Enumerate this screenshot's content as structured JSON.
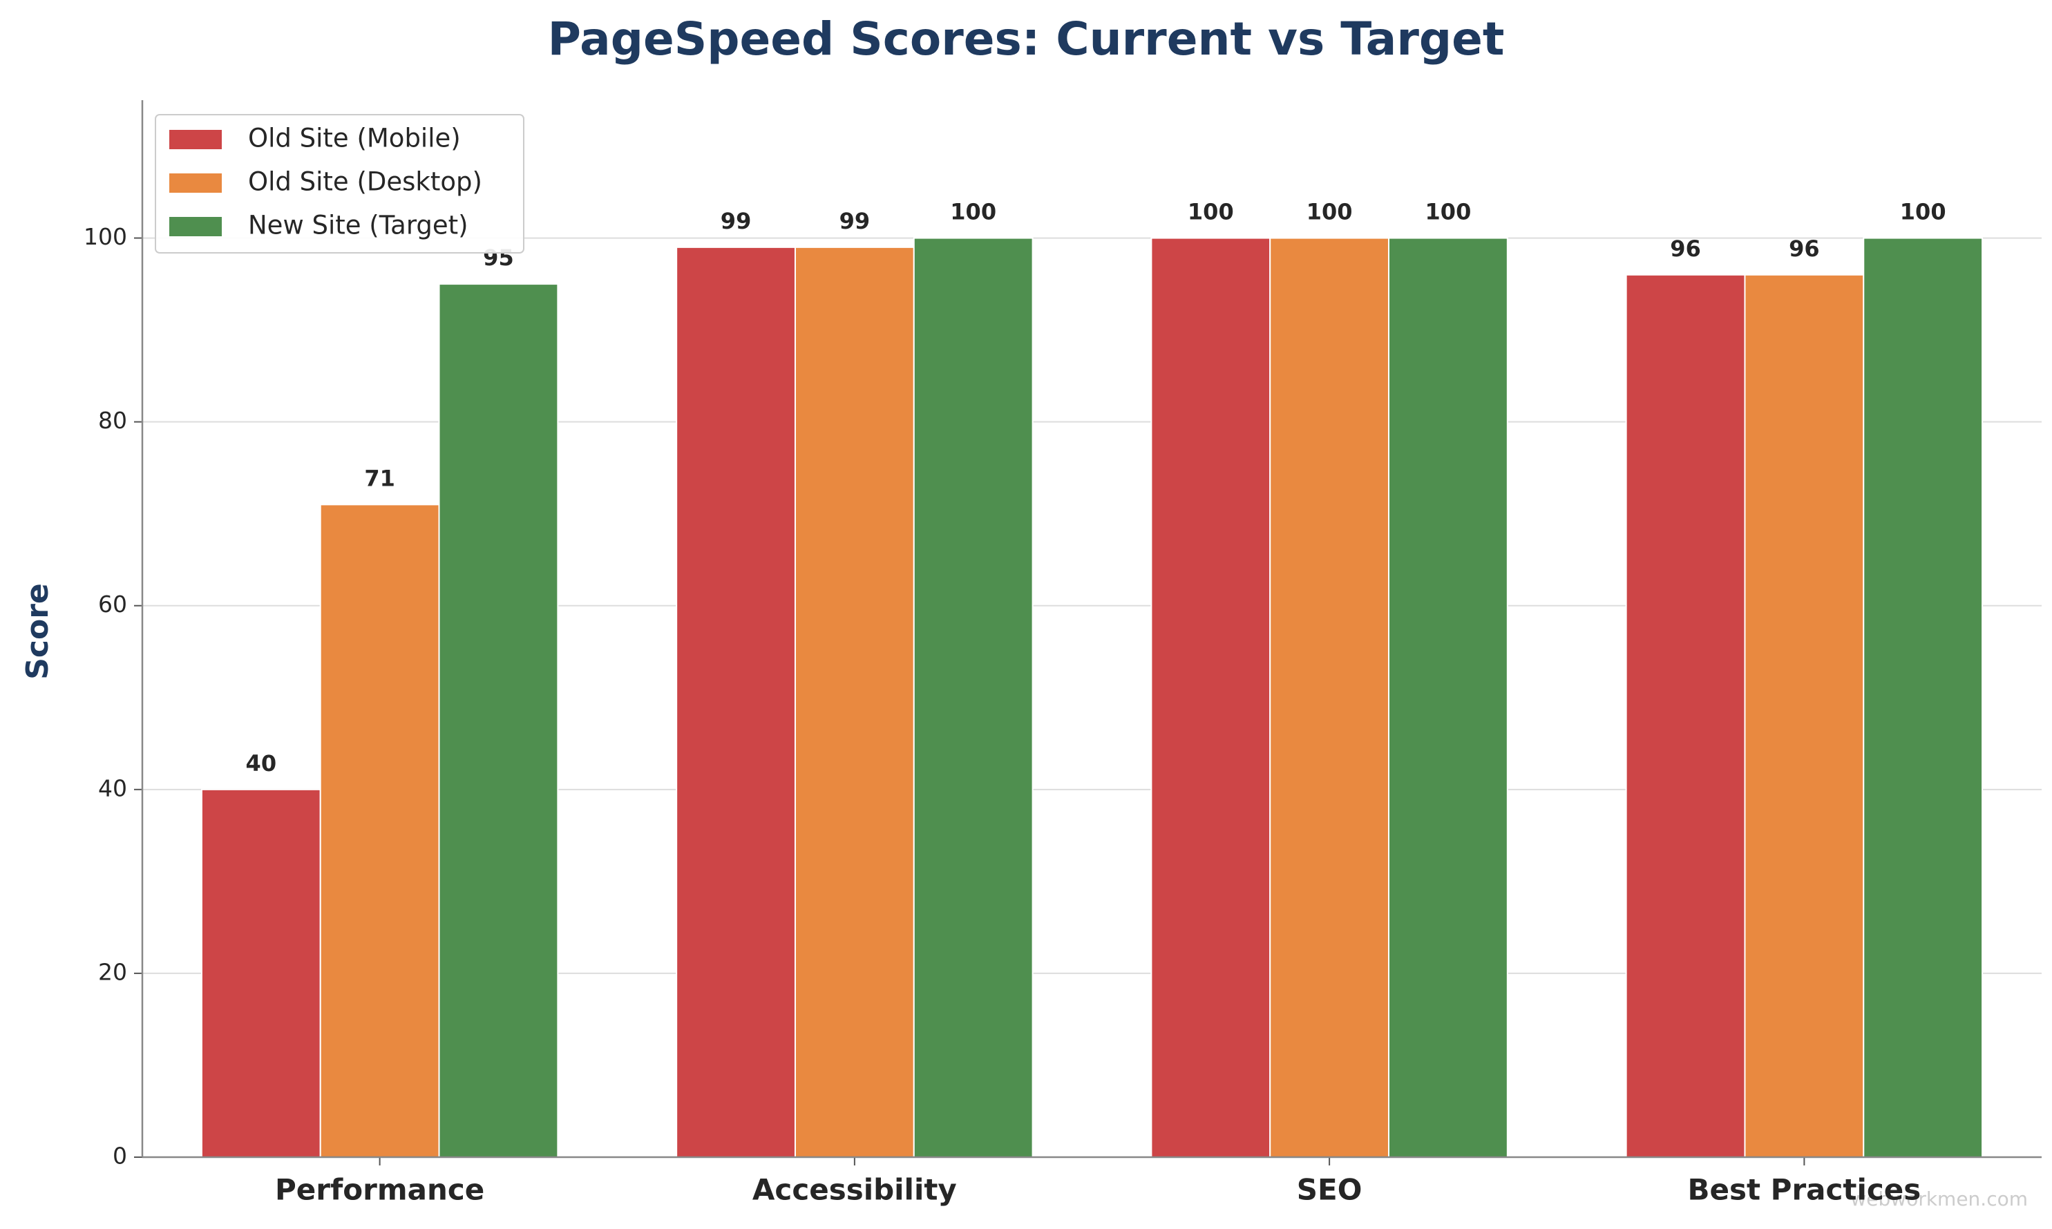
{
  "chart_data": {
    "type": "bar",
    "title": "PageSpeed Scores: Current vs Target",
    "ylabel": "Score",
    "categories": [
      "Performance",
      "Accessibility",
      "SEO",
      "Best Practices"
    ],
    "series": [
      {
        "name": "Old Site (Mobile)",
        "color": "#cd4547",
        "values": [
          40,
          99,
          100,
          96
        ]
      },
      {
        "name": "Old Site (Desktop)",
        "color": "#e98940",
        "values": [
          71,
          99,
          100,
          96
        ]
      },
      {
        "name": "New Site (Target)",
        "color": "#4f8f4f",
        "values": [
          95,
          100,
          100,
          100
        ]
      }
    ],
    "ylim": [
      0,
      115
    ],
    "yticks": [
      0,
      20,
      40,
      60,
      80,
      100
    ],
    "grid": true,
    "legend": "upper-left",
    "watermark": "webworkmen.com"
  }
}
